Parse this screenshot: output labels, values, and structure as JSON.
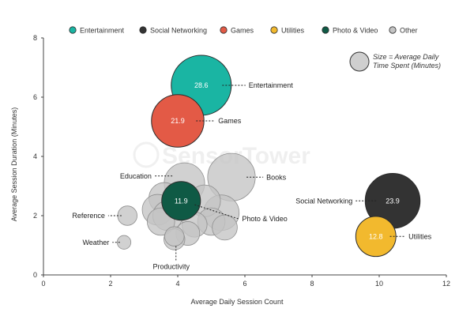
{
  "chart_data": {
    "type": "scatter",
    "xlabel": "Average Daily Session Count",
    "ylabel": "Average Session Duration (Minutes)",
    "xlim": [
      0,
      12
    ],
    "ylim": [
      0,
      8
    ],
    "xticks": [
      0,
      2,
      4,
      6,
      8,
      10,
      12
    ],
    "yticks": [
      0,
      2,
      4,
      6,
      8
    ],
    "size_note": [
      "Size = Average Daily",
      "Time Spent (Minutes)"
    ],
    "watermark": "SensorTower",
    "legend": [
      {
        "name": "Entertainment",
        "color": "#1ab5a3"
      },
      {
        "name": "Social Networking",
        "color": "#333333"
      },
      {
        "name": "Games",
        "color": "#e35a46"
      },
      {
        "name": "Utilities",
        "color": "#f2b92e"
      },
      {
        "name": "Photo & Video",
        "color": "#0f5a45"
      },
      {
        "name": "Other",
        "color": "#c4c4c4"
      }
    ],
    "points": [
      {
        "series": "Other",
        "name": "Books",
        "x": 5.6,
        "y": 3.3,
        "value": 18,
        "label": "Books"
      },
      {
        "series": "Other",
        "name": "Education",
        "x": 4.2,
        "y": 3.1,
        "value": 13,
        "label": "Education"
      },
      {
        "series": "Other",
        "name": "",
        "x": 3.6,
        "y": 2.6,
        "value": 7.5,
        "label": ""
      },
      {
        "series": "Other",
        "name": "",
        "x": 3.4,
        "y": 2.2,
        "value": 7.5,
        "label": ""
      },
      {
        "series": "Other",
        "name": "",
        "x": 3.7,
        "y": 2.0,
        "value": 7,
        "label": ""
      },
      {
        "series": "Other",
        "name": "",
        "x": 3.5,
        "y": 1.8,
        "value": 6,
        "label": ""
      },
      {
        "series": "Other",
        "name": "",
        "x": 4.8,
        "y": 2.5,
        "value": 8,
        "label": ""
      },
      {
        "series": "Other",
        "name": "",
        "x": 5.3,
        "y": 2.1,
        "value": 10,
        "label": ""
      },
      {
        "series": "Other",
        "name": "",
        "x": 5.0,
        "y": 1.8,
        "value": 6,
        "label": ""
      },
      {
        "series": "Other",
        "name": "",
        "x": 5.4,
        "y": 1.6,
        "value": 5,
        "label": ""
      },
      {
        "series": "Other",
        "name": "",
        "x": 4.5,
        "y": 1.7,
        "value": 5,
        "label": ""
      },
      {
        "series": "Other",
        "name": "",
        "x": 4.3,
        "y": 1.4,
        "value": 4.5,
        "label": ""
      },
      {
        "series": "Other",
        "name": "",
        "x": 3.9,
        "y": 1.2,
        "value": 3.5,
        "label": ""
      },
      {
        "series": "Other",
        "name": "Reference",
        "x": 2.5,
        "y": 2.0,
        "value": 3,
        "label": "Reference"
      },
      {
        "series": "Other",
        "name": "Weather",
        "x": 2.4,
        "y": 1.1,
        "value": 1.5,
        "label": "Weather"
      },
      {
        "series": "Other",
        "name": "Productivity",
        "x": 3.9,
        "y": 1.3,
        "value": 3,
        "label": "Productivity"
      },
      {
        "series": "Entertainment",
        "name": "Entertainment",
        "x": 4.7,
        "y": 6.4,
        "value": 28.6,
        "label": "Entertainment"
      },
      {
        "series": "Games",
        "name": "Games",
        "x": 4.0,
        "y": 5.2,
        "value": 21.9,
        "label": "Games"
      },
      {
        "series": "Photo & Video",
        "name": "Photo & Video",
        "x": 4.1,
        "y": 2.5,
        "value": 11.9,
        "label": "Photo & Video"
      },
      {
        "series": "Social Networking",
        "name": "Social Networking",
        "x": 10.4,
        "y": 2.5,
        "value": 23.9,
        "label": "Social Networking"
      },
      {
        "series": "Utilities",
        "name": "Utilities",
        "x": 9.9,
        "y": 1.3,
        "value": 12.8,
        "label": "Utilities"
      }
    ]
  }
}
